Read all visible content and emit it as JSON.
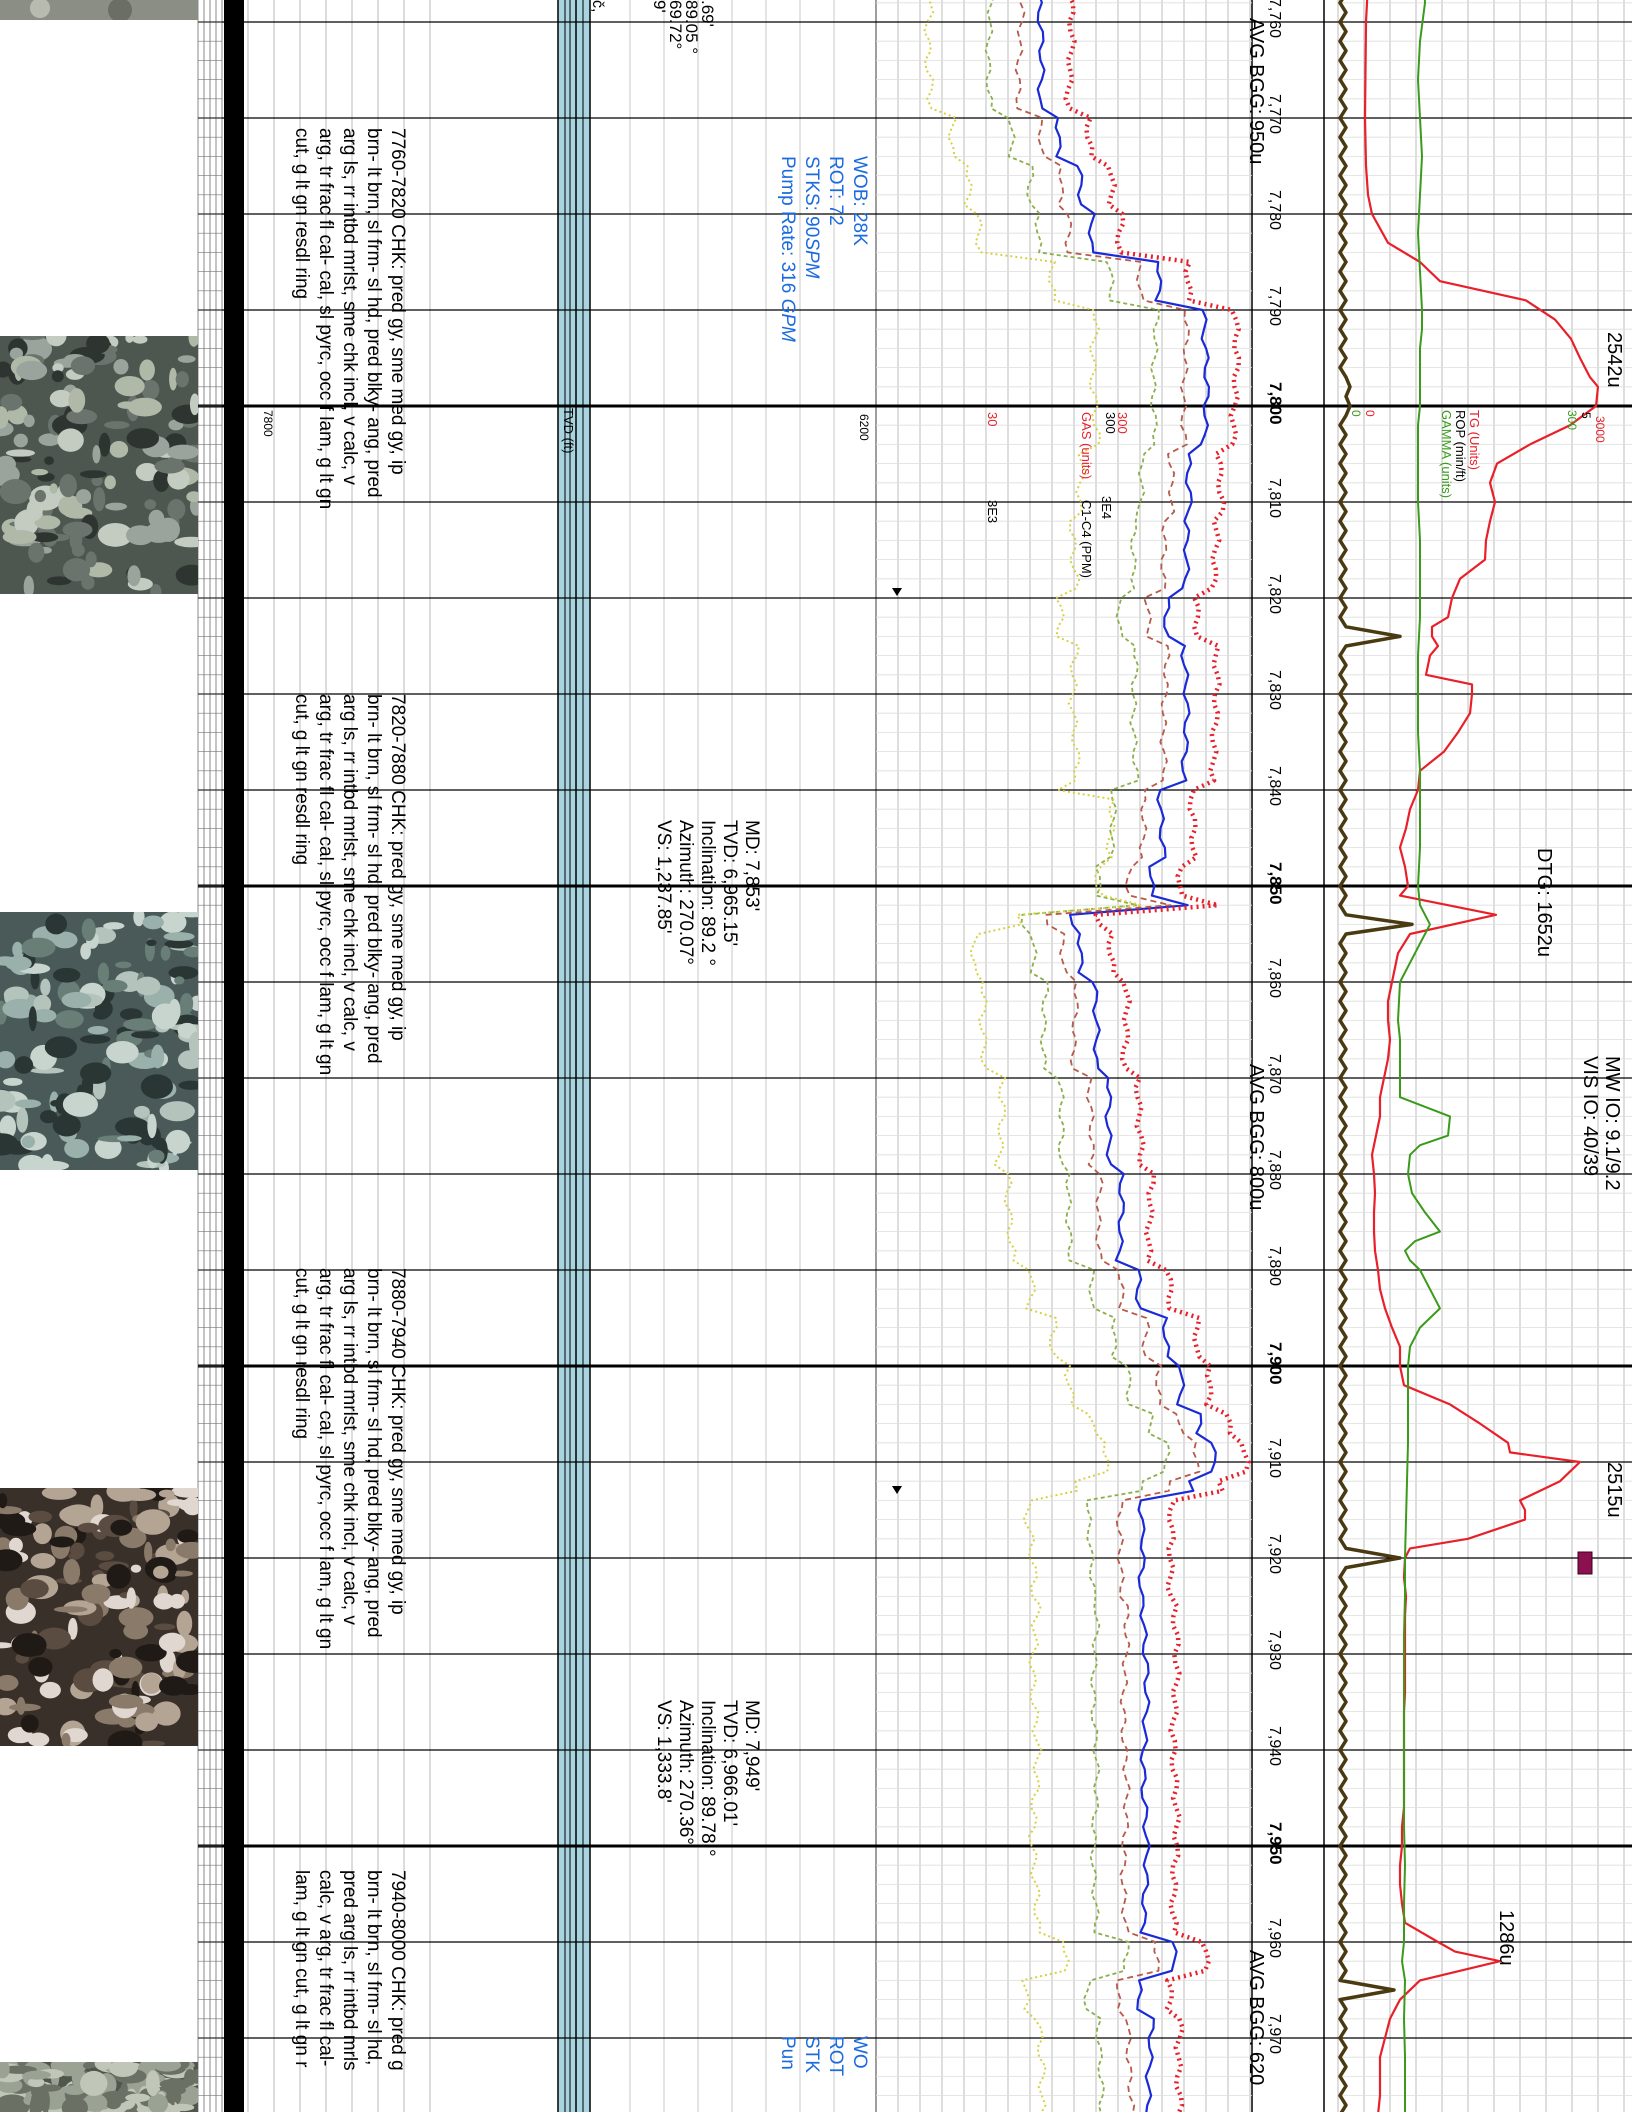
{
  "colors": {
    "tg": "#e8202a",
    "rop": "#3a9a1a",
    "gamma": "#3a9a1a",
    "rop_thick": "#4a3a12",
    "blue": "#1a2ad8",
    "red_dotted": "#e8202a",
    "green_dotted": "#8ab04a",
    "brown_dashed": "#b85a4a",
    "yellow_dotted": "#d8d040",
    "wob_blue": "#1a6ae0",
    "tvd_track": "#a8d4e0"
  },
  "depth_ticks": [
    "7,760",
    "7,770",
    "7,780",
    "7,790",
    "7,800",
    "7,810",
    "7,820",
    "7,830",
    "7,840",
    "7,850",
    "7,860",
    "7,870",
    "7,880",
    "7,890",
    "7,900",
    "7,910",
    "7,920",
    "7,930",
    "7,940",
    "7,950",
    "7,960",
    "7,970"
  ],
  "major_depth_ticks": [
    "7,800",
    "7,850",
    "7,900",
    "7,950"
  ],
  "peak_labels": {
    "p2542": "2542u",
    "dtg": "DTG: 1652u",
    "p2515": "2515u",
    "p1286": "1286u"
  },
  "mw_io": "MW IO: 9.1/9.2",
  "vis_io": "VIS IO: 40/39",
  "avg_bgg": [
    "AVG BGG: 950u",
    "AVG BGG: 800u",
    "AVG BGG: 620"
  ],
  "right_legend": {
    "tg_label": "TG (Units)",
    "rop_label": "ROP (min/ft)",
    "gamma_label": "GAMMA (units)",
    "zero_a": "0",
    "zero_b": "0",
    "scale_3000": "3000",
    "scale_5": "5",
    "scale_300": "300"
  },
  "gas_legend": {
    "gas_label": "GAS (units)",
    "c1c4_label": "C1-C4 (PPM)",
    "v300a": "300",
    "v300b": "300",
    "v3e4": "3E4",
    "v30": "30",
    "v3e3": "3E3"
  },
  "wob_block": {
    "wob": "WOB: 28K",
    "rot": "ROT: 72",
    "stks_prefix": "STKS: 90",
    "stks_unit": "SPM",
    "pump_prefix": "Pump Rate: 316 ",
    "pump_unit": "GPM"
  },
  "wob_block_partial": [
    "WO",
    "ROT",
    "STK",
    "Pun"
  ],
  "survey_1": [
    "MD: 7,853'",
    "TVD: 6,965.15'",
    "Inclination: 89.2 °",
    "Azimuth: 270.07°",
    "VS: 1,237.85'"
  ],
  "survey_2": [
    "MD: 7,949'",
    "TVD: 6,966.01'",
    "Inclination: 89.78 °",
    "Azimuth: 270.36°",
    "VS: 1,333.8'"
  ],
  "survey_partial": [
    ".69'",
    "89.05 °",
    "69.72°",
    "9'"
  ],
  "tvd_label": "TVD (ft)",
  "tvd_ticks": [
    "6200"
  ],
  "md_small": "7800",
  "lith_descriptions": [
    [
      "7760-7820 CHK: pred gy, sme med gy, ip",
      "brn- lt brn, sl frm- sl hd, pred blky- ang, pred",
      "arg ls, rr intbd mrlst, sme chk incl, v calc, v",
      "arg, tr frac fl cal- cal, sl pyrc, occ f lam, g lt gn",
      "cut, g lt gn resdl ring"
    ],
    [
      "7820-7880 CHK: pred gy, sme med gy, ip",
      "brn- lt brn, sl frm- sl hd, pred blky- ang, pred",
      "arg ls, rr intbd mrlst, sme chk incl, v calc, v",
      "arg, tr frac fl cal- cal, sl pyrc, occ f lam, g lt gn",
      "cut, g lt gn resdl ring"
    ],
    [
      "7880-7940 CHK: pred gy, sme med gy, ip",
      "brn- lt brn, sl frm- sl hd, pred blky- ang, pred",
      "arg ls, rr intbd mrlst, sme chk incl, v calc, v",
      "arg, tr frac fl cal- cal, sl pyrc, occ f lam, g lt gn",
      "cut, g lt gn resdl ring"
    ],
    [
      "7940-8000 CHK: pred g",
      "brn- lt brn, sl frm- sl hd,",
      "pred arg ls, rr intbd mrls",
      "calc, v arg, tr frac fl cal-",
      "lam, g lt gn cut, g lt gn r"
    ]
  ],
  "partial_top_left": "č,"
}
